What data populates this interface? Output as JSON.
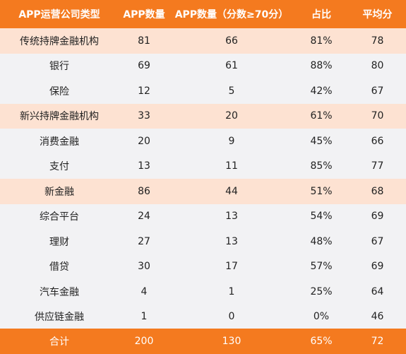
{
  "header": {
    "type": "APP运营公司类型",
    "app_count": "APP数量",
    "app_count_70": "APP数量（分数≥70分）",
    "ratio": "占比",
    "avg_score": "平均分"
  },
  "rows": [
    {
      "name": "传统持牌金融机构",
      "count": "81",
      "count70": "66",
      "ratio": "81%",
      "avg": "78",
      "kind": "category"
    },
    {
      "name": "银行",
      "count": "69",
      "count70": "61",
      "ratio": "88%",
      "avg": "80",
      "kind": "sub"
    },
    {
      "name": "保险",
      "count": "12",
      "count70": "5",
      "ratio": "42%",
      "avg": "67",
      "kind": "sub"
    },
    {
      "name": "新兴持牌金融机构",
      "count": "33",
      "count70": "20",
      "ratio": "61%",
      "avg": "70",
      "kind": "category"
    },
    {
      "name": "消费金融",
      "count": "20",
      "count70": "9",
      "ratio": "45%",
      "avg": "66",
      "kind": "sub"
    },
    {
      "name": "支付",
      "count": "13",
      "count70": "11",
      "ratio": "85%",
      "avg": "77",
      "kind": "sub"
    },
    {
      "name": "新金融",
      "count": "86",
      "count70": "44",
      "ratio": "51%",
      "avg": "68",
      "kind": "category"
    },
    {
      "name": "综合平台",
      "count": "24",
      "count70": "13",
      "ratio": "54%",
      "avg": "69",
      "kind": "sub"
    },
    {
      "name": "理财",
      "count": "27",
      "count70": "13",
      "ratio": "48%",
      "avg": "67",
      "kind": "sub"
    },
    {
      "name": "借贷",
      "count": "30",
      "count70": "17",
      "ratio": "57%",
      "avg": "69",
      "kind": "sub"
    },
    {
      "name": "汽车金融",
      "count": "4",
      "count70": "1",
      "ratio": "25%",
      "avg": "64",
      "kind": "sub"
    },
    {
      "name": "供应链金融",
      "count": "1",
      "count70": "0",
      "ratio": "0%",
      "avg": "46",
      "kind": "sub"
    }
  ],
  "footer": {
    "name": "合计",
    "count": "200",
    "count70": "130",
    "ratio": "65%",
    "avg": "72"
  },
  "colors": {
    "accent": "#f47a1f",
    "category_bg": "#fde2d2",
    "sub_bg": "#f2f2f4"
  }
}
